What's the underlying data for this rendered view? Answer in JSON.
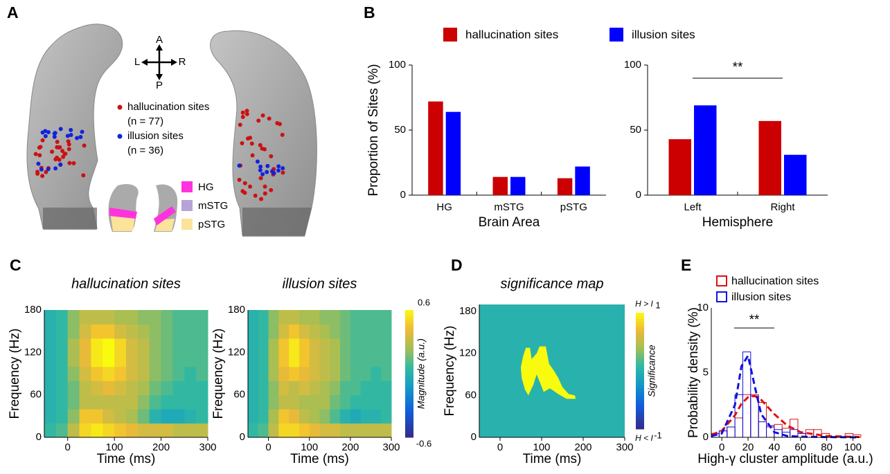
{
  "panel_labels": [
    "A",
    "B",
    "C",
    "D",
    "E"
  ],
  "panel_a": {
    "compass": [
      "A",
      "L",
      "R",
      "P"
    ],
    "legend": [
      {
        "label": "hallucination sites",
        "count": "(n = 77)",
        "color": "#cc1111"
      },
      {
        "label": "illusion sites",
        "count": "(n = 36)",
        "color": "#1122dd"
      }
    ],
    "regions": [
      {
        "label": "HG",
        "color": "#ff33dd"
      },
      {
        "label": "mSTG",
        "color": "#b7a3d6"
      },
      {
        "label": "pSTG",
        "color": "#fbe39a"
      }
    ]
  },
  "chart_data": [
    {
      "type": "bar",
      "ylabel": "Proportion of Sites (%)",
      "xlabel": "Brain Area",
      "categories": [
        "HG",
        "mSTG",
        "pSTG"
      ],
      "series": [
        {
          "name": "hallucination sites",
          "color": "#cc0000",
          "values": [
            72,
            14,
            13
          ]
        },
        {
          "name": "illusion sites",
          "color": "#0000ff",
          "values": [
            64,
            14,
            22
          ]
        }
      ],
      "ylim": [
        0,
        100
      ],
      "yticks": [
        0,
        50,
        100
      ]
    },
    {
      "type": "bar",
      "xlabel": "Hemisphere",
      "annotation": "**",
      "categories": [
        "Left",
        "Right"
      ],
      "series": [
        {
          "name": "hallucination sites",
          "color": "#cc0000",
          "values": [
            43,
            57
          ]
        },
        {
          "name": "illusion sites",
          "color": "#0000ff",
          "values": [
            69,
            31
          ]
        }
      ],
      "ylim": [
        0,
        100
      ],
      "yticks": [
        0,
        50,
        100
      ]
    },
    {
      "type": "heatmap",
      "title": "hallucination sites",
      "xlabel": "Time (ms)",
      "ylabel": "Frequency (Hz)",
      "x_bins": [
        -50,
        -25,
        0,
        25,
        50,
        75,
        100,
        125,
        150,
        175,
        200,
        225,
        250,
        275,
        300
      ],
      "y_bins": [
        0,
        20,
        40,
        60,
        80,
        100,
        120,
        140,
        160,
        180
      ],
      "values": [
        [
          0.05,
          0.1,
          0.3,
          0.5,
          0.55,
          0.5,
          0.45,
          0.4,
          0.35,
          0.35,
          0.35,
          0.3,
          0.3,
          0.3
        ],
        [
          0.0,
          0.05,
          0.2,
          0.45,
          0.45,
          0.35,
          0.3,
          0.25,
          0.15,
          0.0,
          -0.05,
          -0.05,
          0.0,
          0.05
        ],
        [
          0.0,
          0.05,
          0.15,
          0.3,
          0.3,
          0.3,
          0.3,
          0.3,
          0.2,
          0.1,
          0.05,
          0.05,
          0.05,
          0.05
        ],
        [
          0.0,
          0.05,
          0.15,
          0.3,
          0.35,
          0.4,
          0.35,
          0.3,
          0.25,
          0.15,
          0.1,
          0.05,
          0.05,
          0.05
        ],
        [
          0.0,
          0.05,
          0.2,
          0.35,
          0.45,
          0.5,
          0.45,
          0.35,
          0.3,
          0.2,
          0.15,
          0.1,
          0.05,
          0.1
        ],
        [
          0.0,
          0.05,
          0.25,
          0.4,
          0.55,
          0.6,
          0.5,
          0.35,
          0.3,
          0.2,
          0.15,
          0.1,
          0.1,
          0.1
        ],
        [
          0.0,
          0.05,
          0.25,
          0.4,
          0.55,
          0.6,
          0.5,
          0.35,
          0.3,
          0.2,
          0.15,
          0.1,
          0.1,
          0.1
        ],
        [
          0.0,
          0.05,
          0.2,
          0.35,
          0.45,
          0.45,
          0.35,
          0.3,
          0.25,
          0.2,
          0.15,
          0.1,
          0.1,
          0.1
        ],
        [
          0.0,
          0.05,
          0.2,
          0.3,
          0.3,
          0.3,
          0.25,
          0.25,
          0.2,
          0.2,
          0.15,
          0.1,
          0.1,
          0.1
        ]
      ],
      "clim": [
        -0.6,
        0.6
      ],
      "xlim": [
        -50,
        300
      ],
      "ylim": [
        0,
        180
      ],
      "xticks": [
        0,
        100,
        200,
        300
      ],
      "yticks": [
        0,
        60,
        120,
        180
      ]
    },
    {
      "type": "heatmap",
      "title": "illusion sites",
      "xlabel": "Time (ms)",
      "ylabel": "Frequency (Hz)",
      "x_bins": [
        -50,
        -25,
        0,
        25,
        50,
        75,
        100,
        125,
        150,
        175,
        200,
        225,
        250,
        275,
        300
      ],
      "y_bins": [
        0,
        20,
        40,
        60,
        80,
        100,
        120,
        140,
        160,
        180
      ],
      "values": [
        [
          0.05,
          0.1,
          0.3,
          0.5,
          0.5,
          0.45,
          0.4,
          0.35,
          0.35,
          0.3,
          0.3,
          0.3,
          0.3,
          0.3
        ],
        [
          0.0,
          0.05,
          0.25,
          0.45,
          0.4,
          0.3,
          0.25,
          0.2,
          0.1,
          0.0,
          -0.05,
          0.0,
          0.0,
          0.05
        ],
        [
          0.0,
          0.05,
          0.2,
          0.3,
          0.3,
          0.25,
          0.25,
          0.25,
          0.15,
          0.1,
          0.05,
          0.05,
          0.05,
          0.05
        ],
        [
          0.0,
          0.05,
          0.2,
          0.35,
          0.3,
          0.35,
          0.3,
          0.25,
          0.2,
          0.1,
          0.1,
          0.05,
          0.05,
          0.05
        ],
        [
          0.0,
          0.05,
          0.25,
          0.4,
          0.45,
          0.4,
          0.35,
          0.3,
          0.25,
          0.15,
          0.1,
          0.1,
          0.05,
          0.1
        ],
        [
          0.0,
          0.05,
          0.25,
          0.45,
          0.55,
          0.45,
          0.35,
          0.3,
          0.25,
          0.15,
          0.1,
          0.1,
          0.1,
          0.1
        ],
        [
          0.0,
          0.05,
          0.25,
          0.45,
          0.55,
          0.45,
          0.35,
          0.3,
          0.25,
          0.15,
          0.1,
          0.1,
          0.1,
          0.1
        ],
        [
          0.0,
          0.05,
          0.2,
          0.35,
          0.45,
          0.35,
          0.3,
          0.25,
          0.2,
          0.15,
          0.1,
          0.1,
          0.1,
          0.1
        ],
        [
          0.0,
          0.05,
          0.2,
          0.3,
          0.3,
          0.25,
          0.25,
          0.2,
          0.2,
          0.15,
          0.1,
          0.1,
          0.1,
          0.1
        ]
      ],
      "clim": [
        -0.6,
        0.6
      ],
      "xlim": [
        -50,
        300
      ],
      "ylim": [
        0,
        180
      ],
      "xticks": [
        0,
        100,
        200,
        300
      ],
      "yticks": [
        0,
        60,
        120,
        180
      ],
      "colorbar_label": "Magnitude (a.u.)",
      "cticks": [
        -0.6,
        0.6
      ]
    },
    {
      "type": "significance",
      "title": "significance map",
      "xlabel": "Time (ms)",
      "ylabel": "Frequency (Hz)",
      "background": 0,
      "cluster_value": 1,
      "cluster_outline": {
        "x": [
          55,
          62,
          72,
          76,
          88,
          95,
          110,
          118,
          130,
          140,
          150,
          165,
          180,
          182,
          160,
          140,
          120,
          105,
          95,
          88,
          80,
          68,
          60,
          52,
          50
        ],
        "y": [
          115,
          128,
          128,
          112,
          120,
          130,
          130,
          105,
          95,
          85,
          72,
          62,
          60,
          55,
          55,
          62,
          70,
          65,
          80,
          90,
          75,
          60,
          68,
          85,
          100
        ]
      },
      "clim": [
        -1,
        1
      ],
      "cticks": [
        -1,
        1
      ],
      "colorbar_top": "H > I",
      "colorbar_bottom": "H < I",
      "colorbar_label": "Significance",
      "xlim": [
        -50,
        300
      ],
      "ylim": [
        0,
        190
      ],
      "xticks": [
        0,
        100,
        200,
        300
      ],
      "yticks": [
        0,
        60,
        120,
        180
      ]
    },
    {
      "type": "histogram",
      "xlabel": "High-γ cluster amplitude (a.u.)",
      "ylabel": "Probability density (%)",
      "annotation": "**",
      "bins": [
        -8,
        -2,
        4,
        10,
        16,
        22,
        28,
        34,
        40,
        46,
        52,
        58,
        64,
        70,
        76,
        82,
        88,
        94,
        100,
        106
      ],
      "series": [
        {
          "name": "hallucination sites",
          "color": "#dd1111",
          "values": [
            0.3,
            0.5,
            0.8,
            1.5,
            3.3,
            3.3,
            2.7,
            0.8,
            1,
            0.7,
            1.4,
            0.3,
            0.6,
            0.6,
            0.3,
            0,
            0,
            0.3,
            0.2
          ]
        },
        {
          "name": "illusion sites",
          "color": "#1111dd",
          "values": [
            0.3,
            0.5,
            0.8,
            3.3,
            6.6,
            3.2,
            1.2,
            0.9,
            0.6,
            0.4,
            0.6,
            0.3,
            0,
            0,
            0,
            0,
            0,
            0,
            0
          ]
        }
      ],
      "curves": {
        "x": [
          -8,
          0,
          10,
          15,
          20,
          25,
          30,
          40,
          50,
          60,
          80,
          105
        ],
        "series": [
          [
            0.2,
            0.5,
            1.7,
            2.6,
            3.1,
            3.2,
            2.9,
            1.8,
            0.9,
            0.4,
            0.1,
            0.02
          ],
          [
            0.1,
            0.3,
            2.5,
            5.5,
            6.3,
            4.0,
            1.8,
            0.4,
            0.1,
            0.05,
            0.02,
            0.0
          ]
        ]
      },
      "xlim": [
        -8,
        105
      ],
      "ylim": [
        0,
        10
      ],
      "xticks": [
        0,
        20,
        40,
        60,
        80,
        100
      ],
      "yticks": [
        0,
        5,
        10
      ]
    }
  ]
}
